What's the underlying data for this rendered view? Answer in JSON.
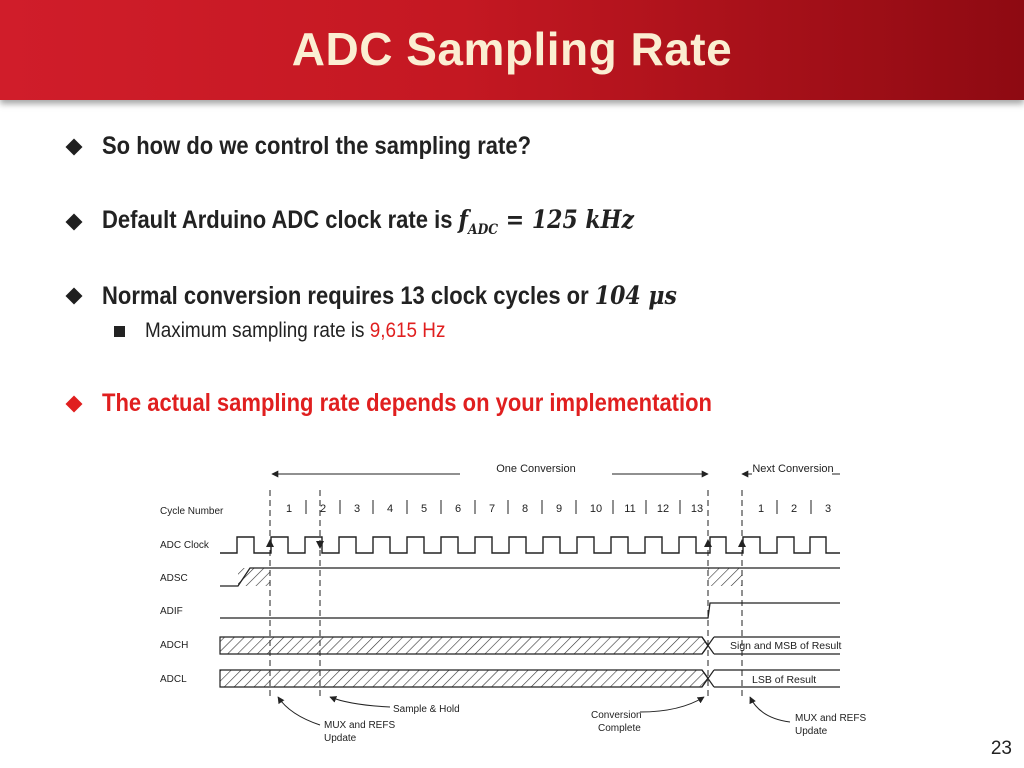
{
  "slide": {
    "title": "ADC Sampling Rate",
    "page_number": "23"
  },
  "bullets": [
    {
      "text": "So how do we control the sampling rate?"
    },
    {
      "text": "Default Arduino ADC clock rate is ",
      "math_f": "f",
      "math_sub": "ADC",
      "math_rest": " = 125 kHz"
    },
    {
      "text": "Normal conversion requires 13 clock cycles or ",
      "math": "104 μs",
      "sub": {
        "prefix": "Maximum sampling rate is ",
        "highlight": "9,615 Hz"
      }
    },
    {
      "text": "The actual sampling rate depends on your implementation"
    }
  ],
  "diagram": {
    "one_conversion": "One Conversion",
    "next_conversion": "Next Conversion",
    "row_labels": [
      "Cycle Number",
      "ADC Clock",
      "ADSC",
      "ADIF",
      "ADCH",
      "ADCL"
    ],
    "cycles": [
      "1",
      "2",
      "3",
      "4",
      "5",
      "6",
      "7",
      "8",
      "9",
      "10",
      "11",
      "12",
      "13"
    ],
    "next_cycles": [
      "1",
      "2",
      "3"
    ],
    "adch_result": "Sign and MSB of Result",
    "adcl_result": "LSB of Result",
    "ann_sample_hold": "Sample & Hold",
    "ann_mux_left_1": "MUX and REFS",
    "ann_mux_left_2": "Update",
    "ann_conv_1": "Conversion",
    "ann_conv_2": "Complete",
    "ann_mux_right_1": "MUX and REFS",
    "ann_mux_right_2": "Update"
  },
  "colors": {
    "accent_red": "#e01f1f",
    "header_red": "#c41822",
    "title_cream": "#fbeed2"
  }
}
